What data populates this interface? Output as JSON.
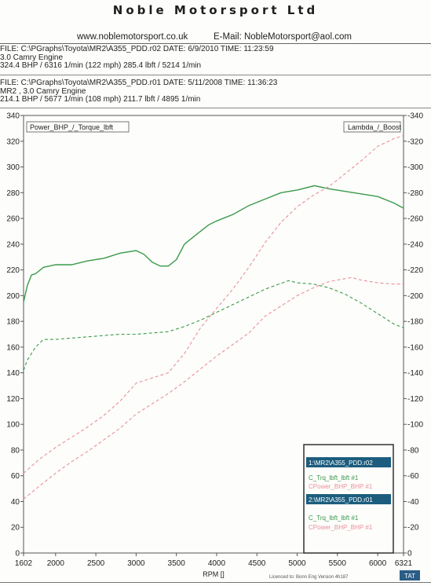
{
  "header": {
    "company": "Noble Motorsport Ltd",
    "website": "www.noblemotorsport.co.uk",
    "email": "E-Mail: NobleMotorsport@aol.com"
  },
  "runs": [
    {
      "file_line": "FILE: C:\\PGraphs\\Toyota\\MR2\\A355_PDD.r02  DATE: 6/9/2010  TIME: 11:23:59",
      "engine_line": "3.0 Camry Engine",
      "result_line": "324.4 BHP / 6316 1/min (122 mph)    285.4 lbft / 5214 1/min"
    },
    {
      "file_line": "FILE: C:\\PGraphs\\Toyota\\MR2\\A355_PDD.r01  DATE: 5/11/2008  TIME: 11:36:23",
      "engine_line": "MR2 , 3.0 Camry Engine",
      "result_line": "214.1 BHP / 5677 1/min (108 mph)    211.7 lbft / 4895 1/min"
    }
  ],
  "chart_data": {
    "type": "line",
    "left_axis_label": "Power_BHP_/_Torque_lbft",
    "right_axis_label": "Lambda_/_Boost",
    "xlabel": "RPM  []",
    "xlim": [
      1602,
      6321
    ],
    "ylim": [
      0,
      340
    ],
    "x_ticks": [
      "1602",
      "2000",
      "2500",
      "3000",
      "3500",
      "4000",
      "4500",
      "5000",
      "5500",
      "6000",
      "6321"
    ],
    "y_ticks": [
      "0",
      "20",
      "40",
      "60",
      "80",
      "100",
      "120",
      "140",
      "160",
      "180",
      "200",
      "220",
      "240",
      "260",
      "280",
      "300",
      "320",
      "340"
    ],
    "y_ticks_right": [
      "0",
      "-20",
      "-40",
      "-60",
      "-80",
      "-100",
      "-120",
      "-140",
      "-160",
      "-180",
      "-200",
      "-220",
      "-240",
      "-260",
      "-280",
      "-300",
      "-320",
      "-340"
    ],
    "series": [
      {
        "key": "torque_r02",
        "color": "#3a9a4a",
        "dash": false,
        "x": [
          1602,
          1650,
          1700,
          1750,
          1850,
          2000,
          2200,
          2400,
          2600,
          2800,
          3000,
          3100,
          3200,
          3300,
          3400,
          3500,
          3600,
          3700,
          3800,
          3900,
          4000,
          4200,
          4400,
          4600,
          4800,
          5000,
          5214,
          5400,
          5600,
          5800,
          6000,
          6200,
          6321
        ],
        "y": [
          195,
          208,
          216,
          217,
          222,
          224,
          224,
          227,
          229,
          233,
          235,
          232,
          226,
          223,
          223,
          228,
          240,
          245,
          250,
          255,
          258,
          263,
          270,
          275,
          280,
          282,
          285.4,
          283,
          281,
          279,
          277,
          272,
          268
        ]
      },
      {
        "key": "power_r02",
        "color": "#e8909a",
        "dash": true,
        "x": [
          1602,
          1800,
          2000,
          2200,
          2400,
          2600,
          2800,
          3000,
          3200,
          3400,
          3600,
          3800,
          4000,
          4200,
          4400,
          4600,
          4800,
          5000,
          5200,
          5400,
          5600,
          5800,
          6000,
          6200,
          6321
        ],
        "y": [
          62,
          73,
          82,
          90,
          98,
          107,
          118,
          132,
          136,
          140,
          155,
          175,
          190,
          205,
          222,
          241,
          257,
          269,
          278,
          285,
          295,
          305,
          316,
          322,
          324.4
        ]
      },
      {
        "key": "torque_r01",
        "color": "#3a9a4a",
        "dash": true,
        "x": [
          1602,
          1650,
          1750,
          1850,
          2000,
          2200,
          2400,
          2600,
          2800,
          3000,
          3200,
          3400,
          3600,
          3800,
          4000,
          4200,
          4400,
          4600,
          4895,
          5000,
          5200,
          5400,
          5600,
          5800,
          6000,
          6200,
          6321
        ],
        "y": [
          142,
          150,
          160,
          166,
          166,
          167,
          168,
          169,
          170,
          170,
          171,
          172,
          176,
          181,
          187,
          193,
          199,
          205,
          211.7,
          210,
          209,
          206,
          201,
          194,
          186,
          178,
          175
        ]
      },
      {
        "key": "power_r01",
        "color": "#e8909a",
        "dash": true,
        "x": [
          1602,
          1800,
          2000,
          2200,
          2400,
          2600,
          2800,
          3000,
          3200,
          3400,
          3600,
          3800,
          4000,
          4200,
          4400,
          4600,
          4800,
          5000,
          5200,
          5400,
          5677,
          5800,
          6000,
          6200,
          6321
        ],
        "y": [
          42,
          52,
          62,
          71,
          79,
          88,
          97,
          108,
          116,
          124,
          133,
          143,
          153,
          162,
          171,
          184,
          192,
          200,
          206,
          211,
          214.1,
          212,
          210,
          209,
          209
        ]
      }
    ]
  },
  "legend": {
    "file1": "1:\\MR2\\A355_PDD.r02",
    "file1_items": [
      "C_Trq_lbft_lbft #1",
      "CPower_BHP_BHP #1"
    ],
    "file2": "2:\\MR2\\A355_PDD.r01",
    "file2_items": [
      "C_Trq_lbft_lbft #1",
      "CPower_BHP_BHP #1"
    ]
  },
  "footer": {
    "license": "Licenced to: Bonn Eng  Version 4h187",
    "badge": "TAT"
  }
}
